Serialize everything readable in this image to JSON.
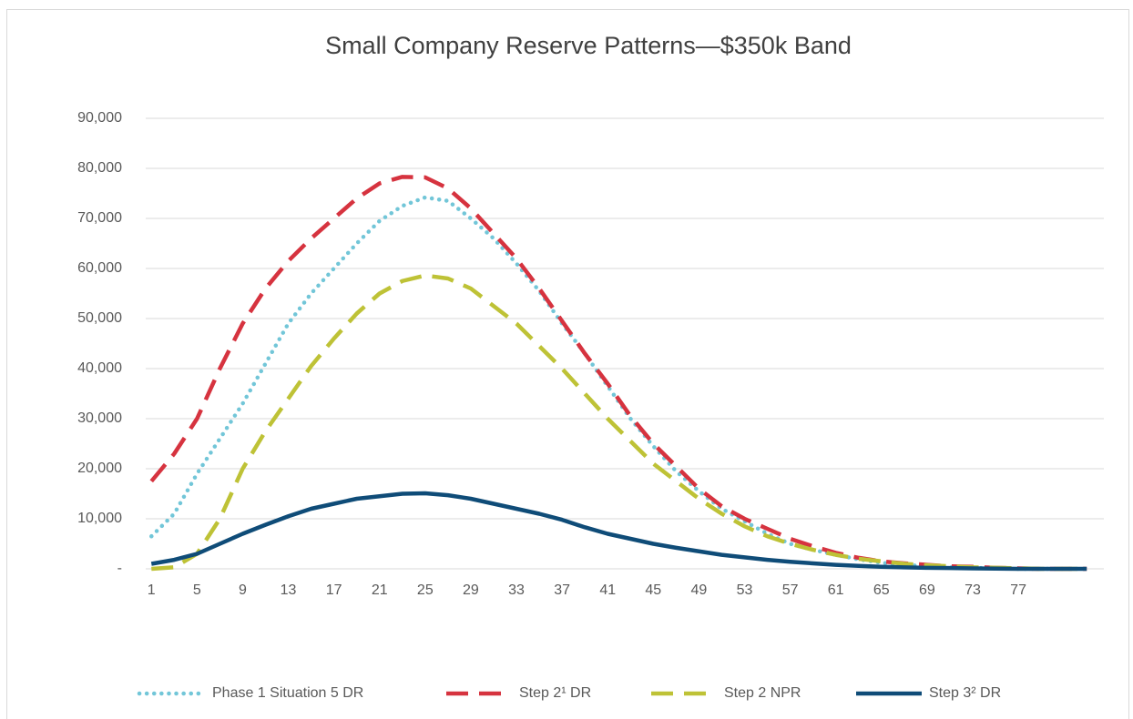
{
  "chart_data": {
    "type": "line",
    "title": "Small Company Reserve Patterns—$350k Band",
    "x": [
      1,
      3,
      5,
      7,
      9,
      11,
      13,
      15,
      17,
      19,
      21,
      23,
      25,
      27,
      29,
      31,
      33,
      35,
      37,
      39,
      41,
      43,
      45,
      47,
      49,
      51,
      53,
      55,
      57,
      59,
      61,
      63,
      65,
      67,
      69,
      71,
      73,
      75,
      77,
      79,
      81,
      83
    ],
    "xlim": [
      0.5,
      84.5
    ],
    "xticks": [
      1,
      5,
      9,
      13,
      17,
      21,
      25,
      29,
      33,
      37,
      41,
      45,
      49,
      53,
      57,
      61,
      65,
      69,
      73,
      77
    ],
    "ylim": [
      0,
      90000
    ],
    "yticks": [
      {
        "value": 0,
        "label": "-"
      },
      {
        "value": 10000,
        "label": "10,000"
      },
      {
        "value": 20000,
        "label": "20,000"
      },
      {
        "value": 30000,
        "label": "30,000"
      },
      {
        "value": 40000,
        "label": "40,000"
      },
      {
        "value": 50000,
        "label": "50,000"
      },
      {
        "value": 60000,
        "label": "60,000"
      },
      {
        "value": 70000,
        "label": "70,000"
      },
      {
        "value": 80000,
        "label": "80,000"
      },
      {
        "value": 90000,
        "label": "90,000"
      }
    ],
    "grid": true,
    "legend": "bottom",
    "series": [
      {
        "name": "Phase 1 Situation 5 DR",
        "color": "#72c6d8",
        "dash": "dotted",
        "values": [
          6500,
          11000,
          19000,
          26000,
          33000,
          41000,
          49000,
          55000,
          60000,
          65000,
          69500,
          72500,
          74200,
          73500,
          70000,
          66000,
          61000,
          55500,
          49000,
          43000,
          36500,
          30000,
          24500,
          19500,
          15500,
          12000,
          9500,
          7000,
          5000,
          3800,
          2800,
          1900,
          1200,
          800,
          500,
          300,
          200,
          100,
          0,
          0,
          0,
          0
        ]
      },
      {
        "name": "Step 2¹ DR",
        "color": "#d6333f",
        "dash": "dashed",
        "values": [
          17500,
          23000,
          30000,
          40000,
          49000,
          56000,
          61500,
          66000,
          70000,
          74000,
          77000,
          78300,
          78200,
          76000,
          72000,
          67000,
          62000,
          56000,
          49500,
          43000,
          37000,
          30500,
          25000,
          20500,
          16000,
          12500,
          10000,
          8000,
          6000,
          4500,
          3200,
          2200,
          1500,
          1100,
          800,
          500,
          400,
          200,
          100,
          0,
          0,
          0
        ]
      },
      {
        "name": "Step 2 NPR",
        "color": "#bec236",
        "dash": "dashed",
        "values": [
          0,
          300,
          3000,
          10000,
          20000,
          27500,
          34000,
          40500,
          46000,
          51000,
          55000,
          57500,
          58600,
          58000,
          56000,
          52500,
          49000,
          44500,
          40000,
          35000,
          30000,
          25500,
          21000,
          17500,
          14000,
          11000,
          8500,
          6500,
          5000,
          3800,
          2800,
          2000,
          1500,
          1000,
          700,
          500,
          300,
          200,
          100,
          0,
          0,
          0
        ]
      },
      {
        "name": "Step 3² DR",
        "color": "#0f4c78",
        "dash": "solid",
        "values": [
          1000,
          1800,
          3000,
          5000,
          7000,
          8800,
          10500,
          12000,
          13000,
          14000,
          14500,
          15000,
          15100,
          14700,
          14000,
          13000,
          12000,
          11000,
          9800,
          8300,
          7000,
          6000,
          5000,
          4200,
          3500,
          2800,
          2300,
          1800,
          1400,
          1100,
          800,
          600,
          400,
          300,
          200,
          150,
          100,
          50,
          0,
          0,
          0,
          0
        ]
      }
    ]
  }
}
